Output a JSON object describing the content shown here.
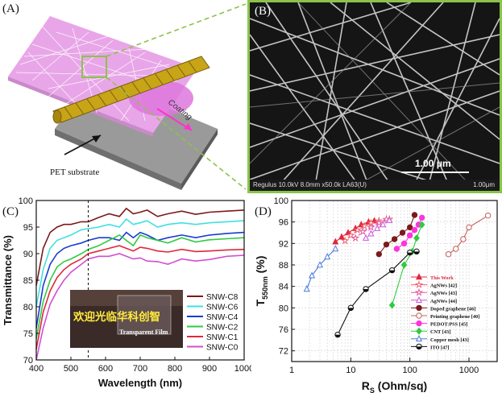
{
  "figure": {
    "panel_a": {
      "label": "(A)",
      "coating_label": "Coating",
      "substrate_label": "PET substrate"
    },
    "panel_b": {
      "label": "(B)",
      "scalebar_label": "1.00 μm",
      "sem_info": "Regulus 10.0kV 8.0mm x50.0k LA63(U)",
      "sem_scale": "1.00μm"
    },
    "panel_c": {
      "label": "(C)",
      "photo_text": "欢迎光临华科创智",
      "photo_subtext": "Transparent Film"
    },
    "panel_d": {
      "label": "(D)"
    },
    "colors": {
      "sem_border": "#8bc34a",
      "pet_sheet": "#9a9a9a",
      "film_pink": "#e8a6e8",
      "rod": "#c8a417"
    }
  },
  "chart_data": [
    {
      "type": "line",
      "panel": "C",
      "xlabel": "Wavelength (nm)",
      "ylabel": "Transmittance (%)",
      "xlim": [
        400,
        1000
      ],
      "ylim": [
        70,
        100
      ],
      "xticks": [
        400,
        500,
        600,
        700,
        800,
        900,
        1000
      ],
      "yticks": [
        70,
        75,
        80,
        85,
        90,
        95,
        100
      ],
      "vline_x": 550,
      "series": [
        {
          "name": "SNW-C8",
          "color": "#7b1a1a",
          "x": [
            400,
            420,
            440,
            460,
            480,
            500,
            530,
            550,
            580,
            610,
            640,
            660,
            680,
            700,
            720,
            750,
            780,
            820,
            860,
            900,
            950,
            1000
          ],
          "y": [
            84,
            91,
            94,
            95,
            95.5,
            95.5,
            96,
            96,
            96.8,
            97.5,
            97,
            98.5,
            97.5,
            97.8,
            98.2,
            97,
            97.5,
            98,
            97.4,
            97.8,
            98,
            98.2
          ]
        },
        {
          "name": "SNW-C6",
          "color": "#40e0e0",
          "x": [
            400,
            420,
            440,
            460,
            480,
            500,
            530,
            550,
            580,
            610,
            640,
            660,
            680,
            700,
            720,
            750,
            780,
            820,
            860,
            900,
            950,
            1000
          ],
          "y": [
            80,
            87,
            91,
            92.5,
            93,
            93.5,
            94.5,
            94.7,
            95,
            95.5,
            95,
            96.5,
            95.5,
            95.8,
            96.2,
            95,
            95.5,
            95.8,
            95.5,
            95.8,
            96,
            96.2
          ]
        },
        {
          "name": "SNW-C4",
          "color": "#1a3ccf",
          "x": [
            400,
            420,
            440,
            460,
            480,
            500,
            530,
            550,
            580,
            610,
            640,
            660,
            680,
            700,
            720,
            750,
            780,
            820,
            860,
            900,
            950,
            1000
          ],
          "y": [
            76,
            84,
            88,
            90,
            91,
            91.5,
            92,
            92.5,
            93,
            93,
            92.5,
            94,
            93,
            94,
            93.5,
            92.5,
            93,
            93.5,
            93,
            93.5,
            93.8,
            94
          ]
        },
        {
          "name": "SNW-C2",
          "color": "#2ecc40",
          "x": [
            400,
            420,
            440,
            460,
            480,
            500,
            530,
            550,
            580,
            610,
            640,
            660,
            680,
            700,
            720,
            750,
            780,
            820,
            860,
            900,
            950,
            1000
          ],
          "y": [
            74,
            81,
            85,
            87.5,
            88.5,
            89,
            90,
            90.8,
            91.5,
            92.5,
            93.5,
            92.5,
            91.5,
            93.5,
            93,
            92.5,
            92,
            93,
            92.2,
            92.6,
            92.8,
            93
          ]
        },
        {
          "name": "SNW-C1",
          "color": "#e0283c",
          "x": [
            400,
            420,
            440,
            460,
            480,
            500,
            530,
            550,
            580,
            610,
            640,
            660,
            680,
            700,
            720,
            750,
            780,
            820,
            860,
            900,
            950,
            1000
          ],
          "y": [
            72,
            79,
            83,
            85.5,
            87,
            88,
            89,
            90,
            90.5,
            91,
            91.5,
            91,
            90.5,
            91.2,
            91,
            90.5,
            90.3,
            90.8,
            90.4,
            90.5,
            90.7,
            90.8
          ]
        },
        {
          "name": "SNW-C0",
          "color": "#d24ed2",
          "x": [
            400,
            420,
            440,
            460,
            480,
            500,
            530,
            550,
            580,
            610,
            640,
            660,
            680,
            700,
            720,
            750,
            780,
            820,
            860,
            900,
            950,
            1000
          ],
          "y": [
            70,
            76,
            80.5,
            83,
            85,
            86.5,
            88,
            89,
            89.5,
            89.5,
            90,
            89.5,
            89,
            89.2,
            88.6,
            88.5,
            88,
            89,
            88.6,
            88.9,
            89.5,
            89.7
          ]
        }
      ]
    },
    {
      "type": "scatter",
      "panel": "D",
      "xlabel": "R",
      "xlabel_sub": "S",
      "xlabel_unit": " (Ohm/sq)",
      "ylabel": "T",
      "ylabel_sub": "550nm",
      "ylabel_unit": " (%)",
      "xscale": "log",
      "xlim": [
        1,
        3000
      ],
      "ylim": [
        70,
        100
      ],
      "xticks": [
        1,
        10,
        100,
        1000
      ],
      "xtick_labels": [
        "1",
        "10",
        "100",
        "1000"
      ],
      "yticks": [
        72,
        76,
        80,
        84,
        88,
        92,
        96,
        100
      ],
      "legend_position": "lower-right",
      "series": [
        {
          "name": "This Work",
          "color": "#e0283c",
          "marker": "triangle-filled",
          "x": [
            5.5,
            7,
            9,
            12,
            15,
            20,
            25
          ],
          "y": [
            92.3,
            93.2,
            94,
            94.8,
            95.5,
            96,
            96.2
          ]
        },
        {
          "name": "AgNWs [42]",
          "color": "#f06070",
          "marker": "star",
          "x": [
            8,
            10,
            13,
            17,
            22,
            30,
            45
          ],
          "y": [
            92.5,
            93.5,
            94.5,
            95.2,
            95.8,
            96.2,
            96.5
          ]
        },
        {
          "name": "AgNWs [43]",
          "color": "#e05a9a",
          "marker": "star",
          "x": [
            12,
            16,
            22,
            30,
            40
          ],
          "y": [
            93,
            94.2,
            95,
            95.8,
            96.5
          ]
        },
        {
          "name": "AgNWs [44]",
          "color": "#cc55dd",
          "marker": "triangle",
          "x": [
            18,
            22,
            28,
            35,
            45
          ],
          "y": [
            93,
            93.8,
            94.8,
            95.5,
            96.3
          ]
        },
        {
          "name": "Doped graphene [46]",
          "color": "#7b1a1a",
          "marker": "circle-filled",
          "x": [
            30,
            40,
            55,
            75,
            100,
            120
          ],
          "y": [
            90,
            91.8,
            92.8,
            94,
            95,
            97.3
          ]
        },
        {
          "name": "Printing graphene [40]",
          "color": "#c0605a",
          "marker": "circle-open",
          "x": [
            450,
            600,
            800,
            1000,
            2100
          ],
          "y": [
            90,
            91,
            92.8,
            95,
            97.2
          ]
        },
        {
          "name": "PEDOT:PSS [45]",
          "color": "#ff33dd",
          "marker": "circle-filled",
          "x": [
            60,
            80,
            100,
            120,
            140,
            160
          ],
          "y": [
            91,
            92,
            93.5,
            94.5,
            95.5,
            96.8
          ]
        },
        {
          "name": "CNT [43]",
          "color": "#2ecc40",
          "marker": "diamond-filled",
          "x": [
            50,
            80,
            110,
            130,
            160
          ],
          "y": [
            80.5,
            88,
            90.5,
            93,
            95.5
          ]
        },
        {
          "name": "Copper mesh [43]",
          "color": "#4a7ad9",
          "marker": "triangle-open",
          "x": [
            1.8,
            2.2,
            3,
            4,
            5.5
          ],
          "y": [
            83.5,
            86,
            88,
            89.5,
            91
          ]
        },
        {
          "name": "ITO [47]",
          "color": "#111111",
          "marker": "half-circle",
          "x": [
            6,
            10,
            18,
            50,
            100,
            130
          ],
          "y": [
            75,
            80,
            83.5,
            87,
            90.3,
            90.5
          ]
        }
      ]
    }
  ]
}
